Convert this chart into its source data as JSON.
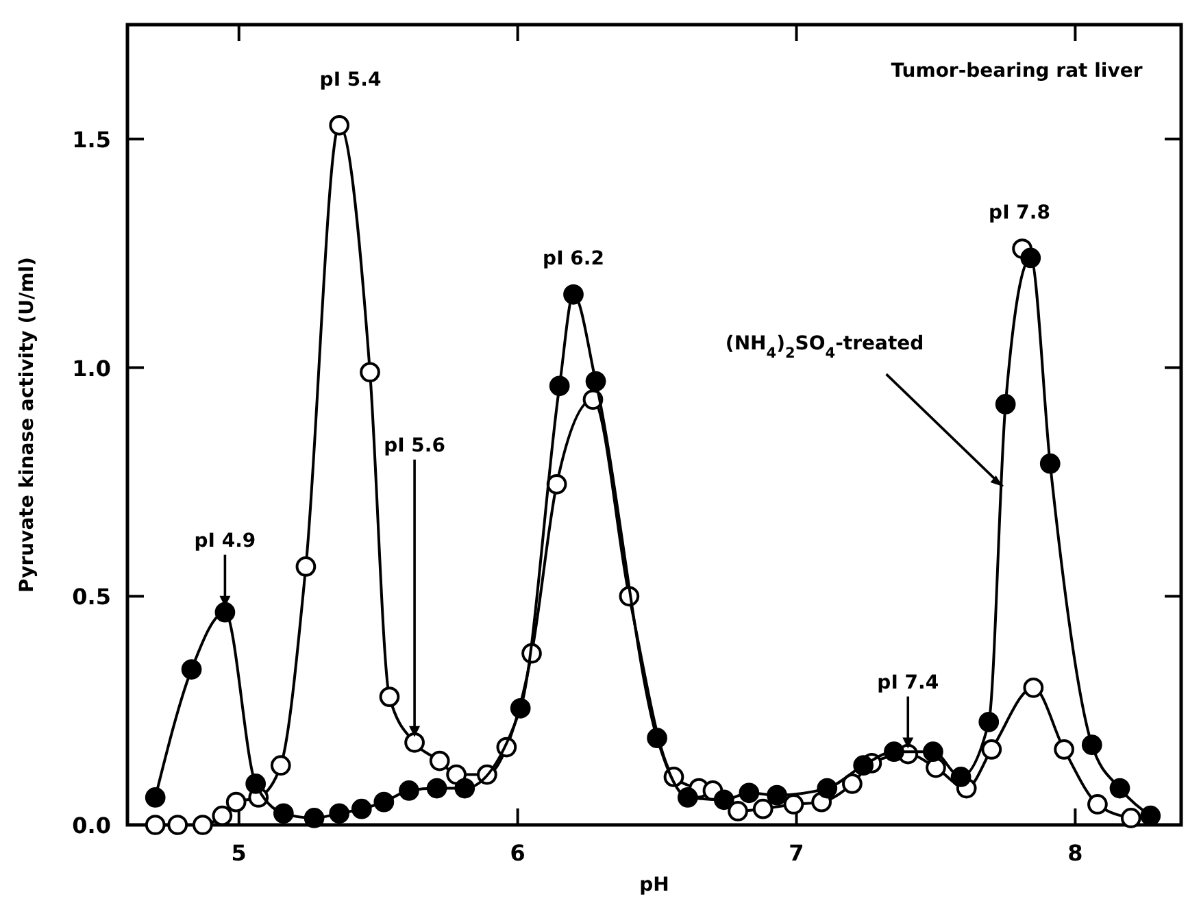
{
  "chart_data": {
    "type": "line",
    "title": "Tumor-bearing rat liver",
    "xlabel": "pH",
    "ylabel": "Pyruvate kinase activity (U/ml)",
    "xlim": [
      4.6,
      8.38
    ],
    "ylim": [
      0,
      1.75
    ],
    "xticks": [
      5,
      6,
      7,
      8
    ],
    "yticks": [
      {
        "value": 0,
        "label": "0.0"
      },
      {
        "value": 0.5,
        "label": "0.5"
      },
      {
        "value": 1,
        "label": "1.0"
      },
      {
        "value": 1.5,
        "label": "1.5"
      }
    ],
    "marker": "circle",
    "grid": false,
    "series": [
      {
        "type": "scatter",
        "color": "#ffffff",
        "x": [
          7.81
        ],
        "values": [
          1.26
        ]
      },
      {
        "color": "#ffffff",
        "x": [
          4.7,
          4.78,
          4.87,
          4.94,
          4.99,
          5.07,
          5.15,
          5.24,
          5.36,
          5.47,
          5.54,
          5.63,
          5.72,
          5.78,
          5.89,
          5.96,
          6.05,
          6.14,
          6.27,
          6.4,
          6.56,
          6.65,
          6.7,
          6.79,
          6.88,
          6.99,
          7.09,
          7.2,
          7.27,
          7.4,
          7.5,
          7.61,
          7.7,
          7.85,
          7.96,
          8.08,
          8.2
        ],
        "values": [
          0,
          0,
          0,
          0.02,
          0.05,
          0.06,
          0.13,
          0.565,
          1.53,
          0.99,
          0.28,
          0.18,
          0.14,
          0.11,
          0.11,
          0.17,
          0.375,
          0.745,
          0.93,
          0.5,
          0.105,
          0.08,
          0.075,
          0.03,
          0.035,
          0.045,
          0.05,
          0.09,
          0.135,
          0.155,
          0.125,
          0.08,
          0.165,
          0.3,
          0.165,
          0.045,
          0.015
        ]
      },
      {
        "color": "#000000",
        "x": [
          4.7,
          4.83,
          4.95,
          5.06,
          5.16,
          5.27,
          5.36,
          5.44,
          5.52,
          5.61,
          5.71,
          5.81,
          6.01,
          6.15,
          6.2,
          6.28,
          6.5,
          6.61,
          6.74,
          6.83,
          6.93,
          7.11,
          7.24,
          7.35,
          7.49,
          7.59,
          7.69,
          7.75,
          7.84,
          7.91,
          8.06,
          8.16,
          8.27
        ],
        "values": [
          0.06,
          0.34,
          0.465,
          0.09,
          0.025,
          0.015,
          0.025,
          0.035,
          0.05,
          0.075,
          0.08,
          0.08,
          0.255,
          0.96,
          1.16,
          0.97,
          0.19,
          0.06,
          0.055,
          0.07,
          0.065,
          0.08,
          0.13,
          0.16,
          0.16,
          0.105,
          0.225,
          0.92,
          1.24,
          0.79,
          0.175,
          0.08,
          0.02
        ]
      }
    ],
    "annotations": [
      {
        "text": "pI 5.4",
        "x": 5.4,
        "y": 1.55
      },
      {
        "text": "pI 6.2",
        "x": 6.2,
        "y": 1.16
      },
      {
        "text": "pI 7.8",
        "x": 7.8,
        "y": 1.26
      },
      {
        "text": "pI 4.9",
        "x": 4.95,
        "y": 0.465
      },
      {
        "text": "pI 5.6",
        "x": 5.63,
        "y": 0.18
      },
      {
        "text": "pI 7.4",
        "x": 7.4,
        "y": 0.155
      },
      {
        "text": "(NH$_{4}$)$_{2}$SO$_{4}$-treated",
        "x": 7.74,
        "y": 0.74
      }
    ]
  }
}
